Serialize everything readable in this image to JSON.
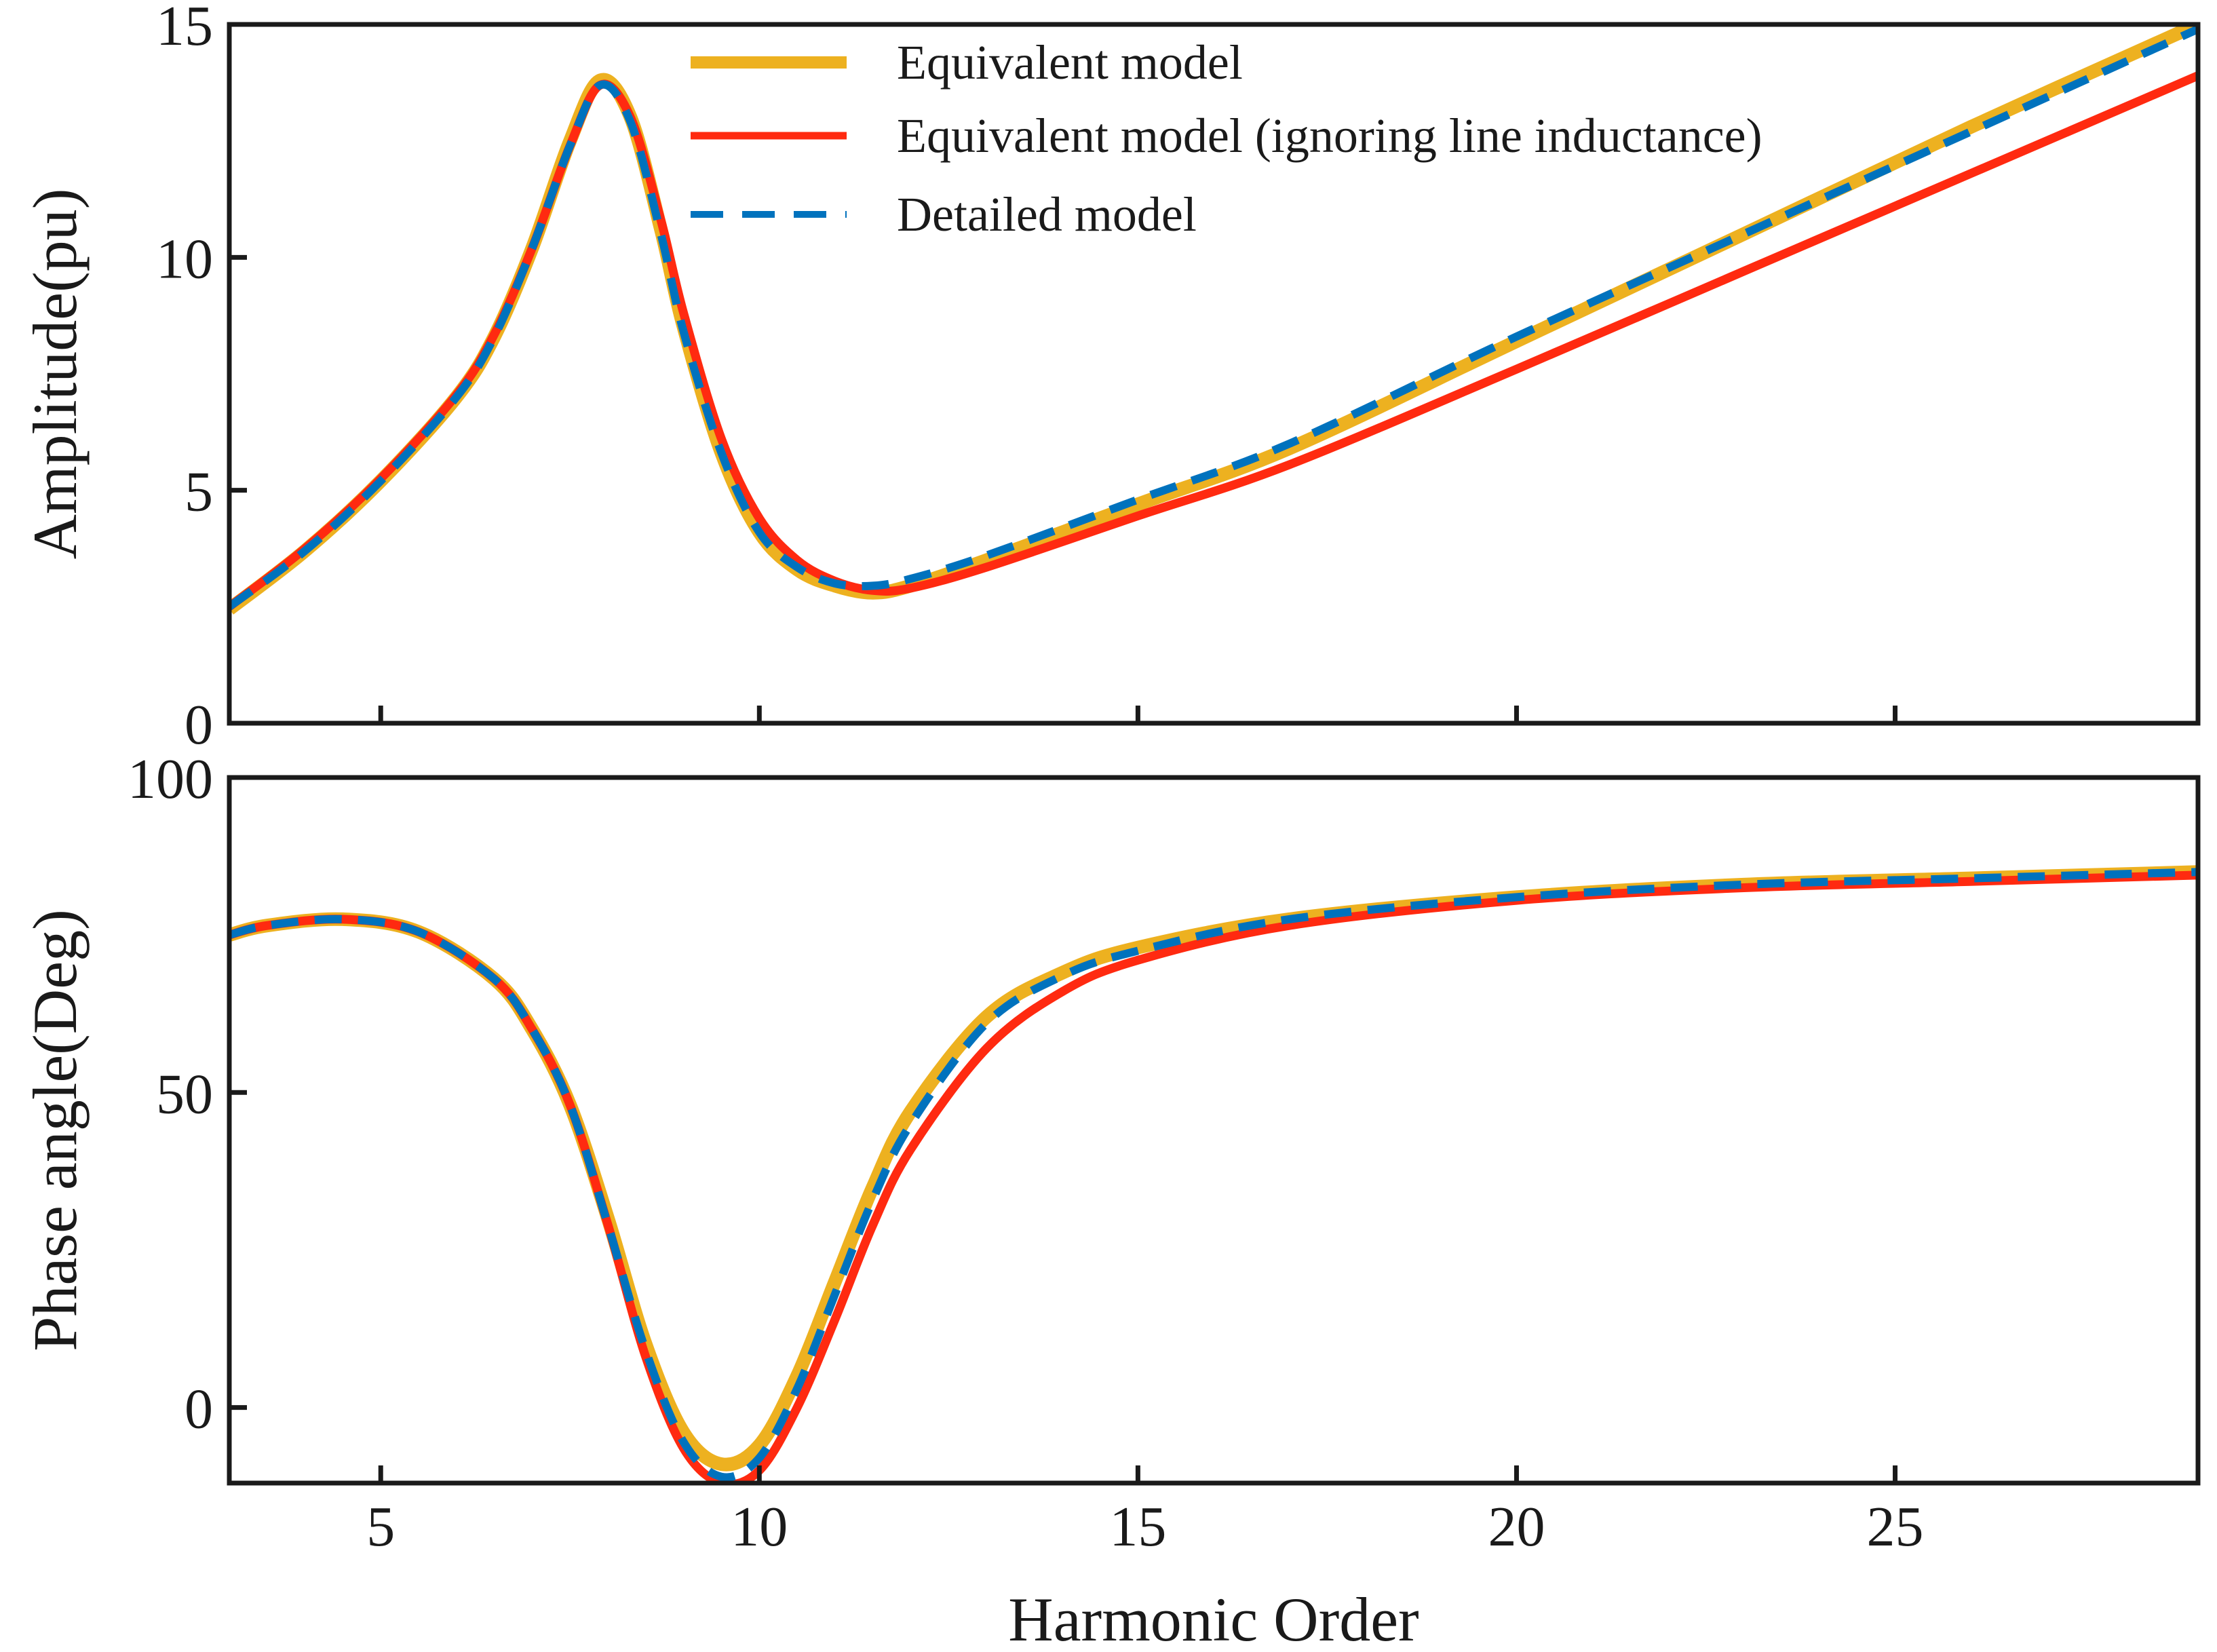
{
  "chart_data": {
    "type": "line",
    "xlabel": "Harmonic Order",
    "x_range": [
      3,
      29
    ],
    "x_ticks": [
      5,
      10,
      15,
      20,
      25
    ],
    "x_tick_labels": [
      "5",
      "10",
      "15",
      "20",
      "25"
    ],
    "legend": {
      "placement": "top-center",
      "entries": [
        "Equivalent model",
        "Equivalent model (ignoring line inductance)",
        "Detailed model"
      ]
    },
    "series_styles": [
      {
        "name": "Equivalent model",
        "color": "#EDB120",
        "dash": "solid"
      },
      {
        "name": "Equivalent model (ignoring line inductance)",
        "color": "#FF2A10",
        "dash": "solid"
      },
      {
        "name": "Detailed model",
        "color": "#0072BD",
        "dash": "dashed"
      }
    ],
    "panels": [
      {
        "ylabel": "Amplitude(pu)",
        "ylim": [
          0,
          15
        ],
        "y_ticks": [
          0,
          5,
          10,
          15
        ],
        "y_tick_labels": [
          "0",
          "5",
          "10",
          "15"
        ],
        "series": [
          {
            "name": "Equivalent model",
            "x": [
              3,
              4,
              5,
              6,
              6.5,
              7,
              7.5,
              7.9,
              8.3,
              8.7,
              9,
              9.5,
              10,
              10.5,
              11,
              11.5,
              12,
              13,
              15,
              17,
              20,
              23,
              26,
              29
            ],
            "y": [
              2.45,
              3.7,
              5.2,
              7.0,
              8.3,
              10.2,
              12.5,
              13.8,
              13.0,
              10.6,
              8.5,
              5.8,
              4.1,
              3.3,
              2.95,
              2.8,
              2.95,
              3.5,
              4.7,
              5.9,
              8.2,
              10.5,
              12.8,
              15.0
            ]
          },
          {
            "name": "Equivalent model (ignoring line inductance)",
            "x": [
              3,
              4,
              5,
              6,
              6.5,
              7,
              7.5,
              7.9,
              8.3,
              8.7,
              9,
              9.5,
              10,
              10.5,
              11,
              11.5,
              12,
              13,
              15,
              17,
              20,
              23,
              26,
              29
            ],
            "y": [
              2.5,
              3.75,
              5.25,
              7.05,
              8.35,
              10.2,
              12.4,
              13.7,
              13.0,
              10.8,
              8.8,
              6.1,
              4.4,
              3.5,
              3.05,
              2.85,
              2.9,
              3.35,
              4.45,
              5.55,
              7.6,
              9.7,
              11.8,
              13.9
            ]
          },
          {
            "name": "Detailed model",
            "x": [
              3,
              4,
              5,
              6,
              6.5,
              7,
              7.5,
              7.9,
              8.3,
              8.7,
              9,
              9.5,
              10,
              10.5,
              11,
              11.5,
              12,
              13,
              15,
              17,
              20,
              23,
              26,
              29
            ],
            "y": [
              2.5,
              3.7,
              5.2,
              7.0,
              8.3,
              10.2,
              12.4,
              13.7,
              12.9,
              10.5,
              8.4,
              5.8,
              4.1,
              3.35,
              3.0,
              2.95,
              3.1,
              3.6,
              4.8,
              6.0,
              8.3,
              10.5,
              12.7,
              14.9
            ]
          }
        ]
      },
      {
        "ylabel": "Phase angle(Deg)",
        "ylim": [
          -12,
          100
        ],
        "y_ticks": [
          0,
          50,
          100
        ],
        "y_tick_labels": [
          "0",
          "50",
          "100"
        ],
        "series": [
          {
            "name": "Equivalent model",
            "x": [
              3,
              3.5,
              4.5,
              5.5,
              6.5,
              7,
              7.5,
              8,
              8.5,
              9,
              9.5,
              10,
              10.5,
              11,
              11.5,
              12,
              13,
              14,
              15,
              17,
              20,
              23,
              26,
              29
            ],
            "y": [
              75,
              76.5,
              77.5,
              75.5,
              68,
              60,
              48,
              30,
              10,
              -4,
              -9,
              -6,
              5,
              20,
              35,
              47,
              62,
              69,
              73,
              77.5,
              81,
              83,
              84,
              85
            ]
          },
          {
            "name": "Equivalent model (ignoring line inductance)",
            "x": [
              3,
              3.5,
              4.5,
              5.5,
              6.5,
              7,
              7.5,
              8,
              8.5,
              9,
              9.5,
              10,
              10.5,
              11,
              11.5,
              12,
              13,
              14,
              15,
              17,
              20,
              23,
              26,
              29
            ],
            "y": [
              75,
              76.5,
              77.5,
              75.5,
              68,
              60,
              48,
              29,
              8,
              -6.5,
              -12,
              -10,
              0,
              14,
              29,
              41,
              57,
              66,
              71,
              76.5,
              80.5,
              82.5,
              83.5,
              84.5
            ]
          },
          {
            "name": "Detailed model",
            "x": [
              3,
              3.5,
              4.5,
              5.5,
              6.5,
              7,
              7.5,
              8,
              8.5,
              9,
              9.5,
              10,
              10.5,
              11,
              11.5,
              12,
              13,
              14,
              15,
              17,
              20,
              23,
              26,
              29
            ],
            "y": [
              75,
              76.5,
              77.5,
              75.5,
              68,
              60,
              48,
              29,
              9,
              -5.5,
              -11,
              -8,
              3,
              18,
              33,
              45,
              61,
              68.5,
              72.5,
              77.5,
              81,
              83,
              84,
              85
            ]
          }
        ]
      }
    ]
  }
}
